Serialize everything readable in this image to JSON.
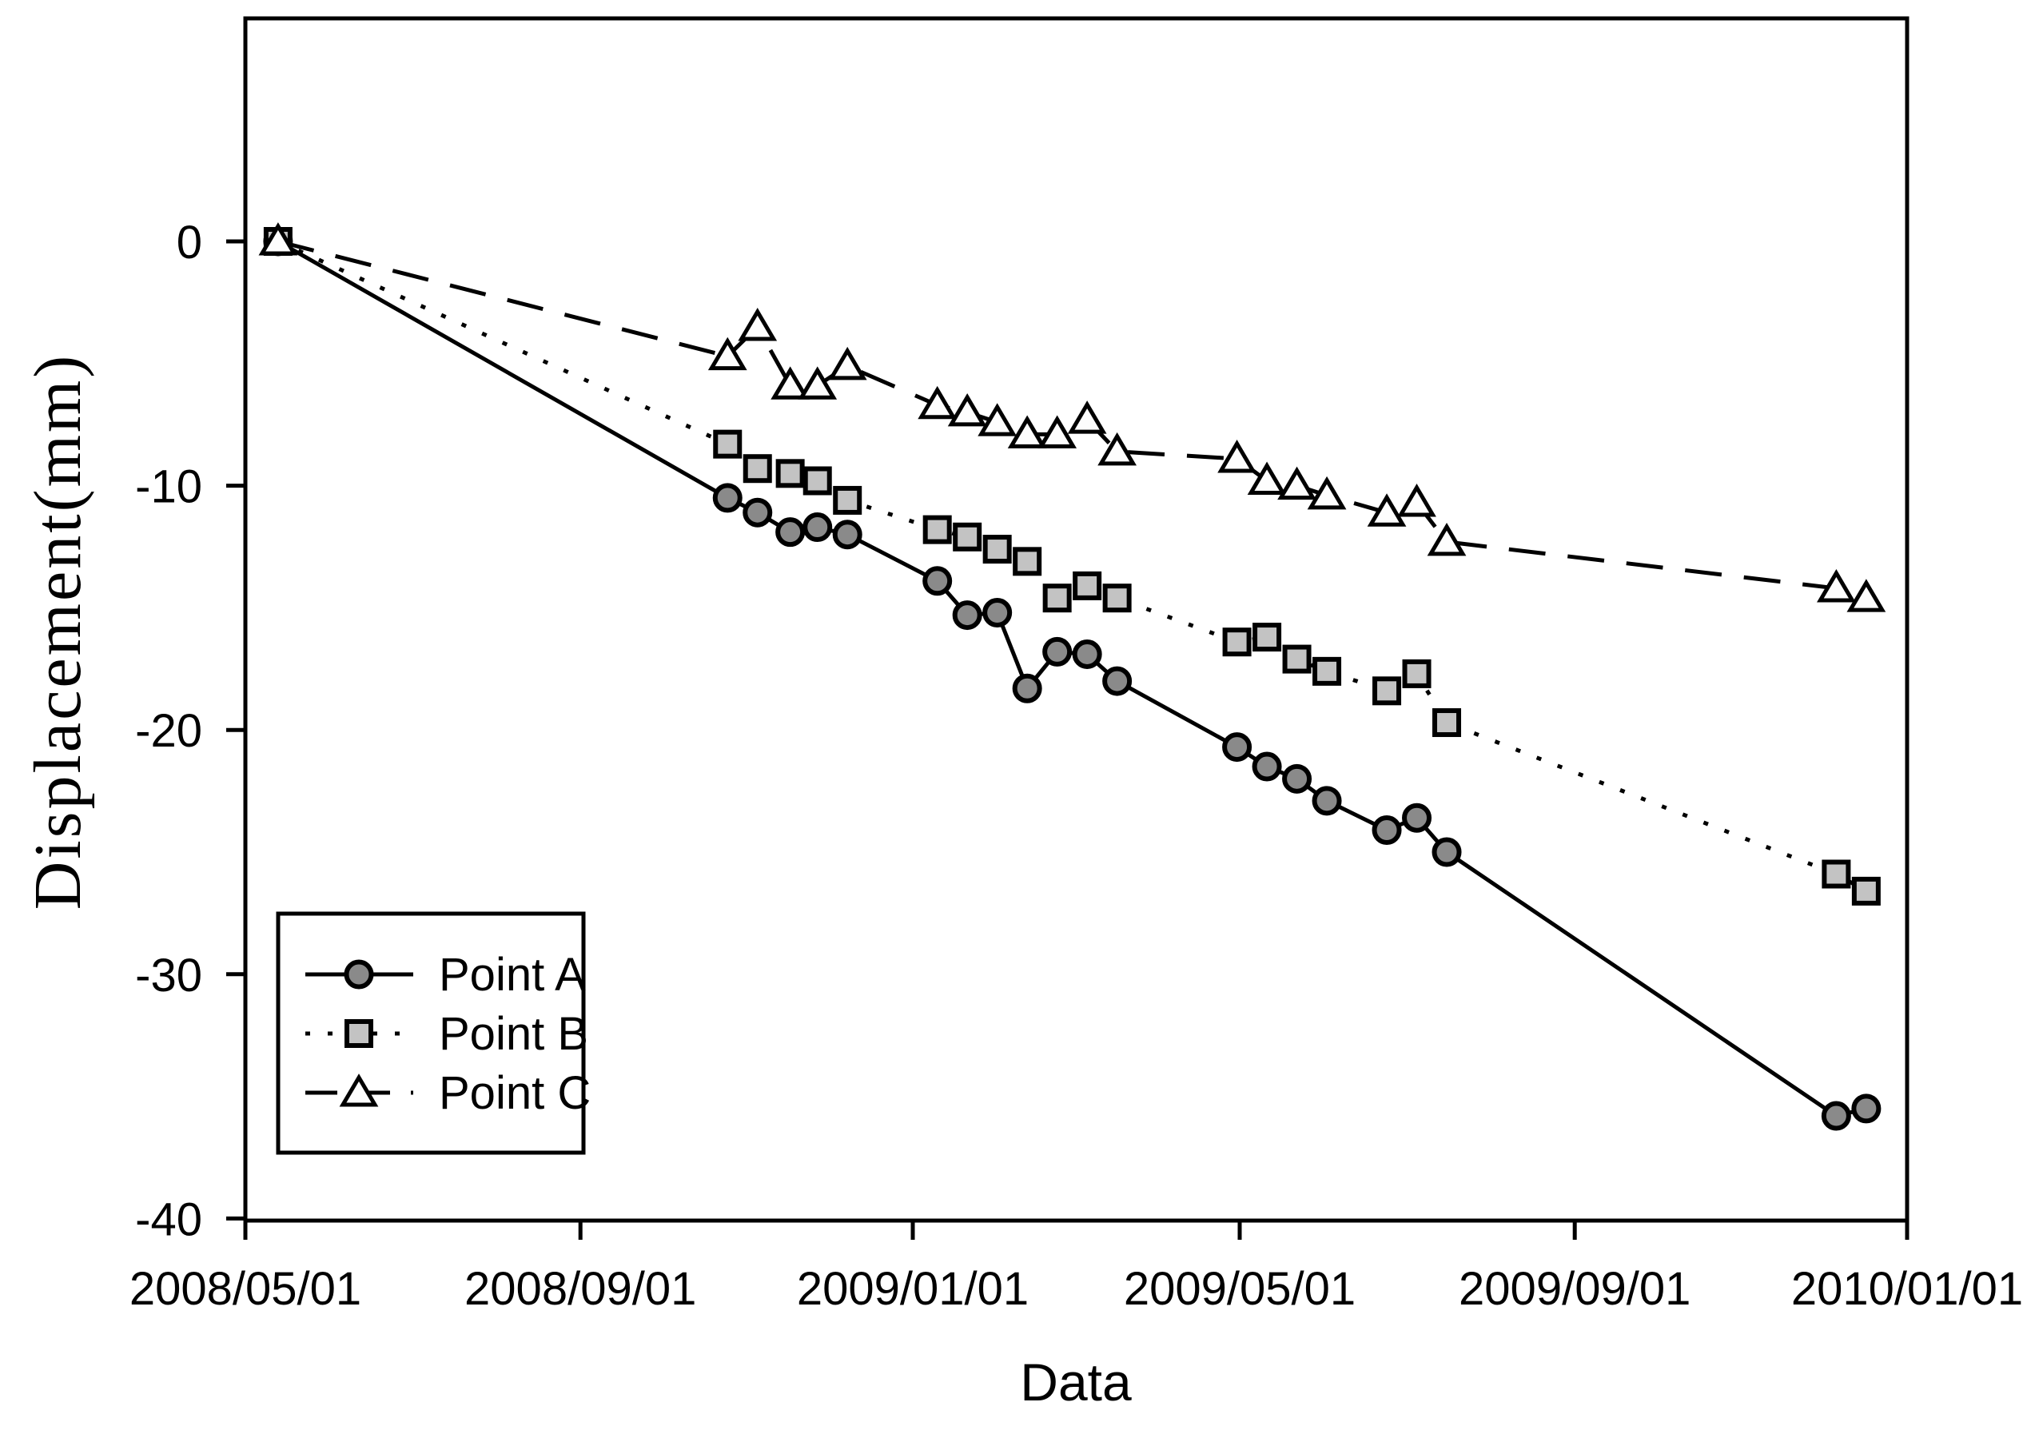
{
  "figure": {
    "background": "#ffffff",
    "axis_color": "#000000",
    "plot_border": "black 5px box, ticks outside, no gridlines"
  },
  "chart_data": {
    "type": "line",
    "title": "",
    "xlabel": "Data",
    "ylabel": "Displacement(mm)",
    "legend_position": "lower-left",
    "x_range_days": [
      0,
      610
    ],
    "ylim": [
      -40,
      0
    ],
    "y_ticks": [
      0,
      -10,
      -20,
      -30,
      -40
    ],
    "x_ticks": [
      {
        "day": 0,
        "label": "2008/05/01"
      },
      {
        "day": 123,
        "label": "2008/09/01"
      },
      {
        "day": 245,
        "label": "2009/01/01"
      },
      {
        "day": 365,
        "label": "2009/05/01"
      },
      {
        "day": 488,
        "label": "2009/09/01"
      },
      {
        "day": 610,
        "label": "2010/01/01"
      }
    ],
    "dates": [
      "2008/05/13",
      "2008/10/25",
      "2008/11/05",
      "2008/11/17",
      "2008/11/27",
      "2008/12/08",
      "2009/01/10",
      "2009/01/21",
      "2009/02/01",
      "2009/02/12",
      "2009/02/23",
      "2009/03/06",
      "2009/03/17",
      "2009/04/30",
      "2009/05/11",
      "2009/05/22",
      "2009/06/02",
      "2009/06/24",
      "2009/07/05",
      "2009/07/16",
      "2009/12/06",
      "2009/12/17"
    ],
    "days": [
      12,
      177,
      188,
      200,
      210,
      221,
      254,
      265,
      276,
      287,
      298,
      309,
      320,
      364,
      375,
      386,
      397,
      419,
      430,
      441,
      584,
      595
    ],
    "series": [
      {
        "name": "Point A",
        "marker": "circle",
        "marker_color": "#8a8a8a",
        "line_style": "solid",
        "line_color": "#000000",
        "values": [
          0,
          -10.5,
          -11.1,
          -11.9,
          -11.7,
          -12.0,
          -13.9,
          -15.3,
          -15.2,
          -18.3,
          -16.8,
          -16.9,
          -18.0,
          -20.7,
          -21.5,
          -22.0,
          -22.9,
          -24.1,
          -23.6,
          -25.0,
          -35.8,
          -35.5
        ]
      },
      {
        "name": "Point B",
        "marker": "square",
        "marker_color": "#c3c3c3",
        "line_style": "dotted",
        "line_color": "#000000",
        "values": [
          0,
          -8.3,
          -9.3,
          -9.5,
          -9.8,
          -10.6,
          -11.8,
          -12.1,
          -12.6,
          -13.1,
          -14.6,
          -14.1,
          -14.6,
          -16.4,
          -16.2,
          -17.1,
          -17.6,
          -18.4,
          -17.7,
          -19.7,
          -25.9,
          -26.6
        ]
      },
      {
        "name": "Point C",
        "marker": "triangle",
        "marker_color": "#fdfdfd",
        "line_style": "dashed",
        "line_color": "#000000",
        "values": [
          0,
          -4.7,
          -3.5,
          -5.9,
          -5.9,
          -5.1,
          -6.7,
          -7.0,
          -7.4,
          -7.9,
          -7.9,
          -7.3,
          -8.6,
          -8.9,
          -9.8,
          -10.0,
          -10.4,
          -11.1,
          -10.7,
          -12.3,
          -14.2,
          -14.6
        ]
      }
    ]
  }
}
